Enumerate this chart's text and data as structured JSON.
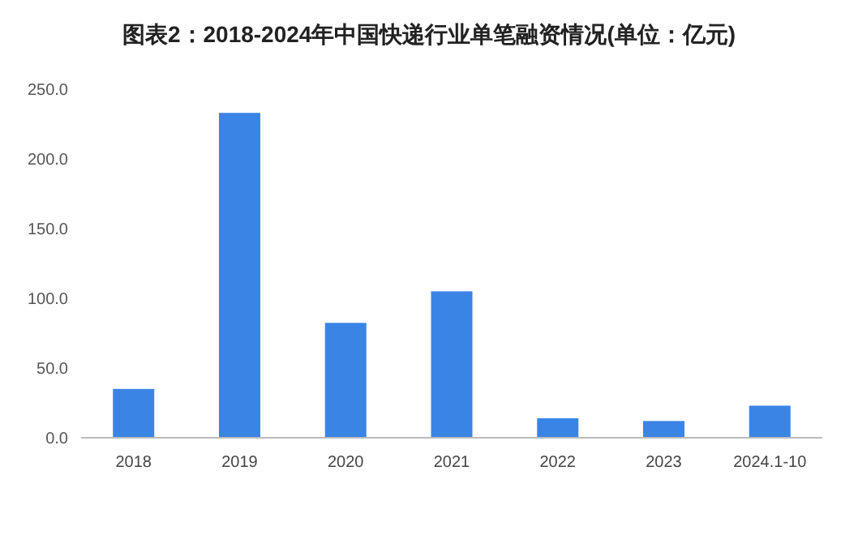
{
  "chart_data": {
    "type": "bar",
    "title": "图表2：2018-2024年中国快递行业单笔融资情况(单位：亿元)",
    "categories": [
      "2018",
      "2019",
      "2020",
      "2021",
      "2022",
      "2023",
      "2024.1-10"
    ],
    "values": [
      35,
      233,
      82.4,
      105,
      14,
      12,
      23
    ],
    "color": "#3a84e6",
    "ylim": [
      0,
      250
    ],
    "yticks": [
      {
        "value": 0,
        "label": "0.0"
      },
      {
        "value": 50,
        "label": "50.0"
      },
      {
        "value": 100,
        "label": "100.0"
      },
      {
        "value": 150,
        "label": "150.0"
      },
      {
        "value": 200,
        "label": "200.0"
      },
      {
        "value": 250,
        "label": "250.0"
      }
    ],
    "grid": false
  }
}
